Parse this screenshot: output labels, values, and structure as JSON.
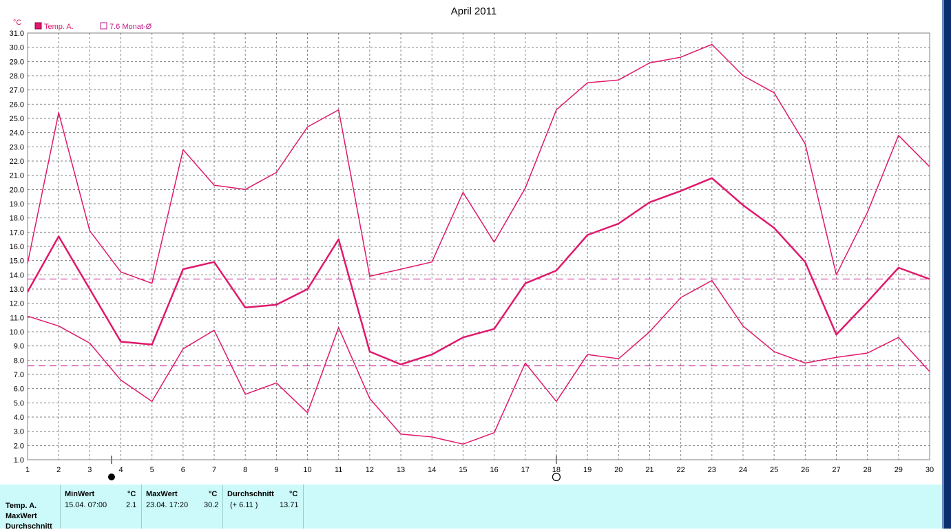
{
  "title": "April 2011",
  "unit_label": "°C",
  "legend": {
    "series_label": "Temp. A.",
    "avg_label": "7.6 Monat-Ø"
  },
  "colors": {
    "series": "#e0186b",
    "grid": "#808080",
    "panel_bg": "#ccfafa",
    "avg_line": "#c0188a"
  },
  "chart_data": {
    "type": "line",
    "title": "April 2011",
    "ylabel": "°C",
    "xlabel": "",
    "ylim": [
      1.0,
      31.0
    ],
    "y_ticks": [
      "1.0",
      "2.0",
      "3.0",
      "4.0",
      "5.0",
      "6.0",
      "7.0",
      "8.0",
      "9.0",
      "10.0",
      "11.0",
      "12.0",
      "13.0",
      "14.0",
      "15.0",
      "16.0",
      "17.0",
      "18.0",
      "19.0",
      "20.0",
      "21.0",
      "22.0",
      "23.0",
      "24.0",
      "25.0",
      "26.0",
      "27.0",
      "28.0",
      "29.0",
      "30.0",
      "31.0"
    ],
    "x": [
      1,
      2,
      3,
      4,
      5,
      6,
      7,
      8,
      9,
      10,
      11,
      12,
      13,
      14,
      15,
      16,
      17,
      18,
      19,
      20,
      21,
      22,
      23,
      24,
      25,
      26,
      27,
      28,
      29,
      30
    ],
    "grid": true,
    "legend_position": "top-left",
    "series": [
      {
        "role": "max",
        "values": [
          14.8,
          25.4,
          17.1,
          14.2,
          13.4,
          22.8,
          20.3,
          20.0,
          21.2,
          24.4,
          25.6,
          13.9,
          14.4,
          14.9,
          19.8,
          16.3,
          20.1,
          25.6,
          27.5,
          27.7,
          28.9,
          29.3,
          30.2,
          28.0,
          26.8,
          23.2,
          14.0,
          18.4,
          23.8,
          21.6
        ]
      },
      {
        "role": "avg",
        "values": [
          12.8,
          16.7,
          13.0,
          9.3,
          9.1,
          14.4,
          14.9,
          11.7,
          11.9,
          13.0,
          16.5,
          8.6,
          7.7,
          8.4,
          9.6,
          10.2,
          13.4,
          14.3,
          16.8,
          17.6,
          19.1,
          19.9,
          20.8,
          18.9,
          17.3,
          14.9,
          9.8,
          12.1,
          14.5,
          13.7
        ]
      },
      {
        "role": "min",
        "values": [
          11.1,
          10.4,
          9.2,
          6.6,
          5.1,
          8.8,
          10.1,
          5.6,
          6.4,
          4.3,
          10.3,
          5.3,
          2.8,
          2.6,
          2.1,
          2.9,
          7.8,
          5.1,
          8.4,
          8.1,
          10.0,
          12.4,
          13.6,
          10.4,
          8.6,
          7.8,
          8.2,
          8.5,
          9.6,
          7.2
        ]
      }
    ],
    "reference_lines": [
      13.71,
      7.6
    ],
    "moon_markers": [
      {
        "x": 3.7,
        "phase": "new-moon"
      },
      {
        "x": 18.0,
        "phase": "full-moon"
      }
    ]
  },
  "stats": {
    "row_labels": [
      "Temp. A.",
      "MaxWert",
      "Durchschnitt"
    ],
    "min": {
      "header": "MinWert",
      "unit": "°C",
      "date": "15.04.  07:00",
      "value": "2.1"
    },
    "max": {
      "header": "MaxWert",
      "unit": "°C",
      "date": "23.04.  17:20",
      "value": "30.2"
    },
    "avg": {
      "header": "Durchschnitt",
      "unit": "°C",
      "delta": "(+ 6.11 )",
      "value": "13.71"
    }
  }
}
